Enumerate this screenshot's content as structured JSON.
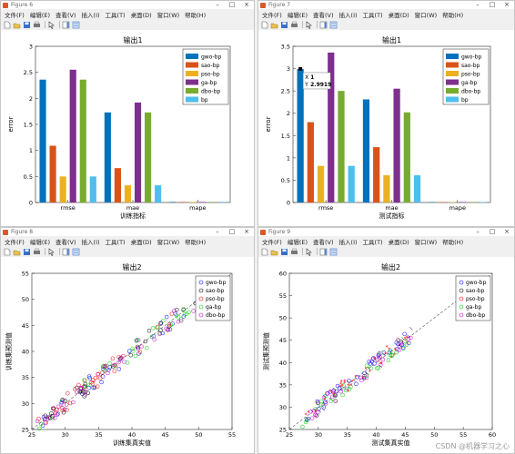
{
  "menu_labels": [
    "文件(F)",
    "编辑(E)",
    "查看(V)",
    "插入(I)",
    "工具(T)",
    "桌面(D)",
    "窗口(W)",
    "帮助(H)"
  ],
  "window_buttons": {
    "minimize": "–",
    "maximize": "□",
    "close": "×"
  },
  "windows": [
    {
      "id": "fig6",
      "title": "Figure 6",
      "chart_data": {
        "type": "bar",
        "title": "输出1",
        "xlabel": "训练指标",
        "ylabel": "error",
        "ylim": [
          0,
          3
        ],
        "yticks": [
          "0",
          "0.5",
          "1",
          "1.5",
          "2",
          "2.5",
          "3"
        ],
        "categories": [
          "rmse",
          "mae",
          "mape"
        ],
        "series": [
          {
            "name": "gwo-bp",
            "color": "#0072bd",
            "values": [
              2.36,
              1.73,
              0.01
            ]
          },
          {
            "name": "sao-bp",
            "color": "#d95319",
            "values": [
              1.09,
              0.66,
              0.01
            ]
          },
          {
            "name": "pso-bp",
            "color": "#edb120",
            "values": [
              0.5,
              0.33,
              0.01
            ]
          },
          {
            "name": "ga-bp",
            "color": "#7e2f8e",
            "values": [
              2.55,
              1.92,
              0.01
            ]
          },
          {
            "name": "dbo-bp",
            "color": "#77ac30",
            "values": [
              2.36,
              1.73,
              0.01
            ]
          },
          {
            "name": "bp",
            "color": "#4dbeee",
            "values": [
              0.5,
              0.33,
              0.01
            ]
          }
        ],
        "legend": "top-right",
        "grid": false
      }
    },
    {
      "id": "fig7",
      "title": "Figure 7",
      "chart_data": {
        "type": "bar",
        "title": "输出1",
        "xlabel": "测试指标",
        "ylabel": "error",
        "ylim": [
          0,
          3.5
        ],
        "yticks": [
          "0",
          "0.5",
          "1",
          "1.5",
          "2",
          "2.5",
          "3",
          "3.5"
        ],
        "categories": [
          "rmse",
          "mae",
          "mape"
        ],
        "series": [
          {
            "name": "gwo-bp",
            "color": "#0072bd",
            "values": [
              2.9919,
              2.31,
              0.01
            ]
          },
          {
            "name": "sao-bp",
            "color": "#d95319",
            "values": [
              1.8,
              1.24,
              0.01
            ]
          },
          {
            "name": "pso-bp",
            "color": "#edb120",
            "values": [
              0.82,
              0.61,
              0.01
            ]
          },
          {
            "name": "ga-bp",
            "color": "#7e2f8e",
            "values": [
              3.36,
              2.55,
              0.01
            ]
          },
          {
            "name": "dbo-bp",
            "color": "#77ac30",
            "values": [
              2.5,
              2.02,
              0.01
            ]
          },
          {
            "name": "bp",
            "color": "#4dbeee",
            "values": [
              0.82,
              0.61,
              0.01
            ]
          }
        ],
        "datatip": {
          "x_label": "X",
          "x_value": "1",
          "y_label": "Y",
          "y_value": "2.9919"
        },
        "legend": "top-right",
        "grid": false
      }
    },
    {
      "id": "fig8",
      "title": "Figure 8",
      "chart_data": {
        "type": "scatter",
        "title": "输出2",
        "xlabel": "训练集真实值",
        "ylabel": "训练集预测值",
        "xlim": [
          25,
          55
        ],
        "ylim": [
          25,
          55
        ],
        "xticks": [
          "25",
          "30",
          "35",
          "40",
          "45",
          "50",
          "55"
        ],
        "yticks": [
          "25",
          "30",
          "35",
          "40",
          "45",
          "50",
          "55"
        ],
        "series": [
          {
            "name": "gwo-bp",
            "color": "#0000ff",
            "seed": 11
          },
          {
            "name": "sao-bp",
            "color": "#000000",
            "seed": 23
          },
          {
            "name": "pso-bp",
            "color": "#ff0000",
            "seed": 37
          },
          {
            "name": "ga-bp",
            "color": "#00cc00",
            "seed": 41
          },
          {
            "name": "dbo-bp",
            "color": "#cc00cc",
            "seed": 53
          }
        ],
        "range": [
          25.5,
          51
        ],
        "spread": 1.6,
        "legend": "top-right",
        "reference_line": true
      }
    },
    {
      "id": "fig9",
      "title": "Figure 9",
      "chart_data": {
        "type": "scatter",
        "title": "输出2",
        "xlabel": "测试集真实值",
        "ylabel": "测试集预测值",
        "xlim": [
          25,
          60
        ],
        "ylim": [
          25,
          60
        ],
        "xticks": [
          "25",
          "30",
          "35",
          "40",
          "45",
          "50",
          "55",
          "60"
        ],
        "yticks": [
          "25",
          "30",
          "35",
          "40",
          "45",
          "50",
          "55",
          "60"
        ],
        "series": [
          {
            "name": "gwo-bp",
            "color": "#0000ff",
            "seed": 61
          },
          {
            "name": "sao-bp",
            "color": "#000000",
            "seed": 73
          },
          {
            "name": "pso-bp",
            "color": "#ff0000",
            "seed": 89
          },
          {
            "name": "ga-bp",
            "color": "#00cc00",
            "seed": 97
          },
          {
            "name": "dbo-bp",
            "color": "#cc00cc",
            "seed": 101
          }
        ],
        "range": [
          27,
          46
        ],
        "spread": 1.7,
        "legend": "top-right",
        "reference_line": true
      }
    }
  ],
  "watermark": "CSDN @机器学习之心"
}
